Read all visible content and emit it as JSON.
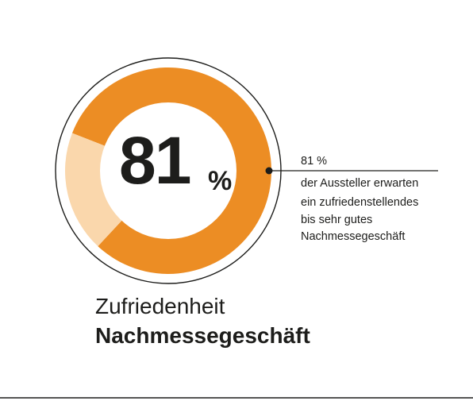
{
  "chart_data": {
    "type": "pie",
    "style": "donut",
    "slices": [
      {
        "value": 81,
        "color": "#ec8d24"
      },
      {
        "value": 19,
        "color": "#fad7ac"
      }
    ],
    "center_value": "81",
    "center_unit": "%",
    "annotation": {
      "value": "81 %",
      "lines": [
        "der Aussteller erwarten",
        "ein zufriedenstellendes",
        "bis sehr gutes",
        "Nachmessegeschäft"
      ]
    },
    "caption": {
      "line1": "Zufriedenheit",
      "line2": "Nachmessegeschäft"
    }
  },
  "colors": {
    "text": "#1d1d1b",
    "outline": "#1d1d1b",
    "footer_rule": "#1d1d1b"
  }
}
